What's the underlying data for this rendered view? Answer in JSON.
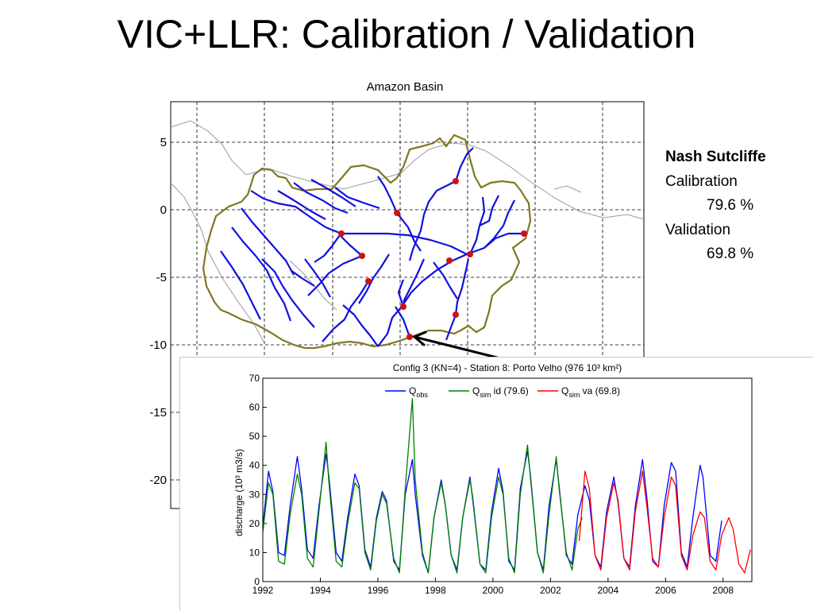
{
  "slide": {
    "title": "VIC+LLR: Calibration / Validation"
  },
  "map": {
    "title": "Amazon Basin",
    "y_ticks": [
      "5",
      "0",
      "-5",
      "-10",
      "-15",
      "-20"
    ],
    "colors": {
      "basin": "#807820",
      "river": "#1010e0",
      "station": "#d01010",
      "grid": "#000000"
    }
  },
  "nash": {
    "header": "Nash Sutcliffe",
    "cal_label": "Calibration",
    "cal_value": "79.6 %",
    "val_label": "Validation",
    "val_value": "69.8 %"
  },
  "chart_data": {
    "type": "line",
    "title": "Config 3 (KN=4) - Station 8: Porto Velho (976 10³ km²)",
    "ylabel": "discharge (10³ m3/s)",
    "xlabel": "",
    "xlim": [
      1992,
      2009
    ],
    "ylim": [
      0,
      70
    ],
    "x_ticks": [
      "1992",
      "1994",
      "1996",
      "1998",
      "2000",
      "2002",
      "2004",
      "2006",
      "2008"
    ],
    "y_ticks": [
      "0",
      "10",
      "20",
      "30",
      "40",
      "50",
      "60",
      "70"
    ],
    "legend_position": "top",
    "legend": [
      {
        "label": "Q",
        "sub": "obs",
        "suffix": "",
        "color": "#0000ff"
      },
      {
        "label": "Q",
        "sub": "sim",
        "suffix": " id (79.6)",
        "color": "#008000"
      },
      {
        "label": "Q",
        "sub": "sim",
        "suffix": " va (69.8)",
        "color": "#ff0000"
      }
    ],
    "series": [
      {
        "name": "Qobs",
        "color": "#0000ff",
        "x": [
          1992.0,
          1992.2,
          1992.35,
          1992.55,
          1992.75,
          1992.95,
          1993.2,
          1993.35,
          1993.55,
          1993.75,
          1993.95,
          1994.2,
          1994.3,
          1994.55,
          1994.75,
          1994.95,
          1995.2,
          1995.35,
          1995.55,
          1995.75,
          1995.95,
          1996.15,
          1996.3,
          1996.55,
          1996.75,
          1996.95,
          1997.2,
          1997.3,
          1997.55,
          1997.75,
          1997.95,
          1998.2,
          1998.35,
          1998.55,
          1998.75,
          1998.95,
          1999.2,
          1999.3,
          1999.55,
          1999.75,
          1999.95,
          2000.2,
          2000.35,
          2000.55,
          2000.75,
          2000.95,
          2001.2,
          2001.3,
          2001.55,
          2001.75,
          2001.95,
          2002.2,
          2002.3,
          2002.55,
          2002.75,
          2002.95,
          2003.2,
          2003.35,
          2003.55,
          2003.75,
          2003.95,
          2004.2,
          2004.35,
          2004.55,
          2004.75,
          2004.95,
          2005.2,
          2005.35,
          2005.55,
          2005.75,
          2005.95,
          2006.2,
          2006.35,
          2006.55,
          2006.75,
          2006.95,
          2007.2,
          2007.3,
          2007.55,
          2007.75,
          2007.95
        ],
        "y": [
          19,
          38,
          31,
          10,
          9,
          26,
          43,
          32,
          11,
          8,
          26,
          44,
          36,
          10,
          7,
          22,
          37,
          33,
          11,
          5,
          22,
          31,
          28,
          7,
          4,
          30,
          42,
          30,
          9,
          3,
          22,
          35,
          26,
          9,
          4,
          22,
          36,
          28,
          6,
          4,
          24,
          39,
          31,
          7,
          4,
          32,
          45,
          37,
          10,
          4,
          26,
          42,
          33,
          9,
          6,
          23,
          33,
          28,
          9,
          5,
          24,
          36,
          27,
          8,
          5,
          26,
          42,
          29,
          7,
          5,
          26,
          41,
          38,
          10,
          5,
          22,
          40,
          36,
          9,
          7,
          21
        ]
      },
      {
        "name": "Qsim id (79.6)",
        "color": "#008000",
        "x": [
          1992.0,
          1992.2,
          1992.35,
          1992.55,
          1992.75,
          1992.95,
          1993.2,
          1993.35,
          1993.55,
          1993.75,
          1993.95,
          1994.2,
          1994.3,
          1994.55,
          1994.75,
          1994.95,
          1995.2,
          1995.35,
          1995.55,
          1995.75,
          1995.95,
          1996.15,
          1996.3,
          1996.55,
          1996.75,
          1996.95,
          1997.2,
          1997.3,
          1997.55,
          1997.75,
          1997.95,
          1998.2,
          1998.35,
          1998.55,
          1998.75,
          1998.95,
          1999.2,
          1999.3,
          1999.55,
          1999.75,
          1999.95,
          2000.2,
          2000.35,
          2000.55,
          2000.75,
          2000.95,
          2001.2,
          2001.3,
          2001.55,
          2001.75,
          2001.95,
          2002.2,
          2002.3,
          2002.55,
          2002.75,
          2002.95,
          2003.1
        ],
        "y": [
          17,
          34,
          30,
          7,
          6,
          23,
          37,
          30,
          8,
          5,
          24,
          48,
          34,
          7,
          5,
          20,
          34,
          32,
          10,
          4,
          21,
          30,
          27,
          8,
          3,
          32,
          63,
          35,
          10,
          3,
          22,
          34,
          26,
          9,
          3,
          22,
          35,
          29,
          6,
          3,
          22,
          36,
          30,
          8,
          3,
          30,
          47,
          36,
          10,
          3,
          23,
          43,
          32,
          10,
          4,
          18,
          22
        ]
      },
      {
        "name": "Qsim va (69.8)",
        "color": "#ff0000",
        "x": [
          2003.0,
          2003.2,
          2003.35,
          2003.55,
          2003.75,
          2003.95,
          2004.2,
          2004.35,
          2004.55,
          2004.75,
          2004.95,
          2005.2,
          2005.35,
          2005.55,
          2005.75,
          2005.95,
          2006.2,
          2006.35,
          2006.55,
          2006.75,
          2006.95,
          2007.2,
          2007.35,
          2007.55,
          2007.75,
          2007.95,
          2008.2,
          2008.35,
          2008.55,
          2008.75,
          2008.95
        ],
        "y": [
          14,
          38,
          32,
          9,
          4,
          22,
          34,
          28,
          8,
          4,
          24,
          38,
          26,
          8,
          5,
          22,
          36,
          33,
          9,
          4,
          16,
          24,
          22,
          7,
          4,
          16,
          22,
          18,
          6,
          3,
          11
        ]
      }
    ]
  }
}
